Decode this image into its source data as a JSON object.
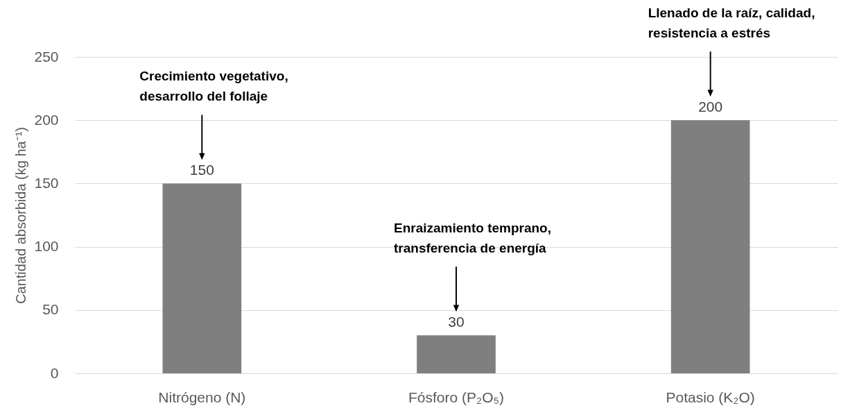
{
  "chart_data": {
    "type": "bar",
    "categories": [
      "Nitrógeno (N)",
      "Fósforo (P₂O₅)",
      "Potasio (K₂O)"
    ],
    "values": [
      150,
      30,
      200
    ],
    "color": "#7f7f7f",
    "ylabel": "Cantidad absorbida (kg ha⁻¹)",
    "ylim": [
      0,
      250
    ],
    "yticks": [
      0,
      50,
      100,
      150,
      200,
      250
    ],
    "grid": "y",
    "data_labels": true,
    "annotations": [
      "Crecimiento vegetativo,\ndesarrollo del follaje",
      "Enraizamiento temprano,\ntransferencia de energía",
      "Llenado de la raíz, calidad,\nresistencia a estrés"
    ]
  }
}
